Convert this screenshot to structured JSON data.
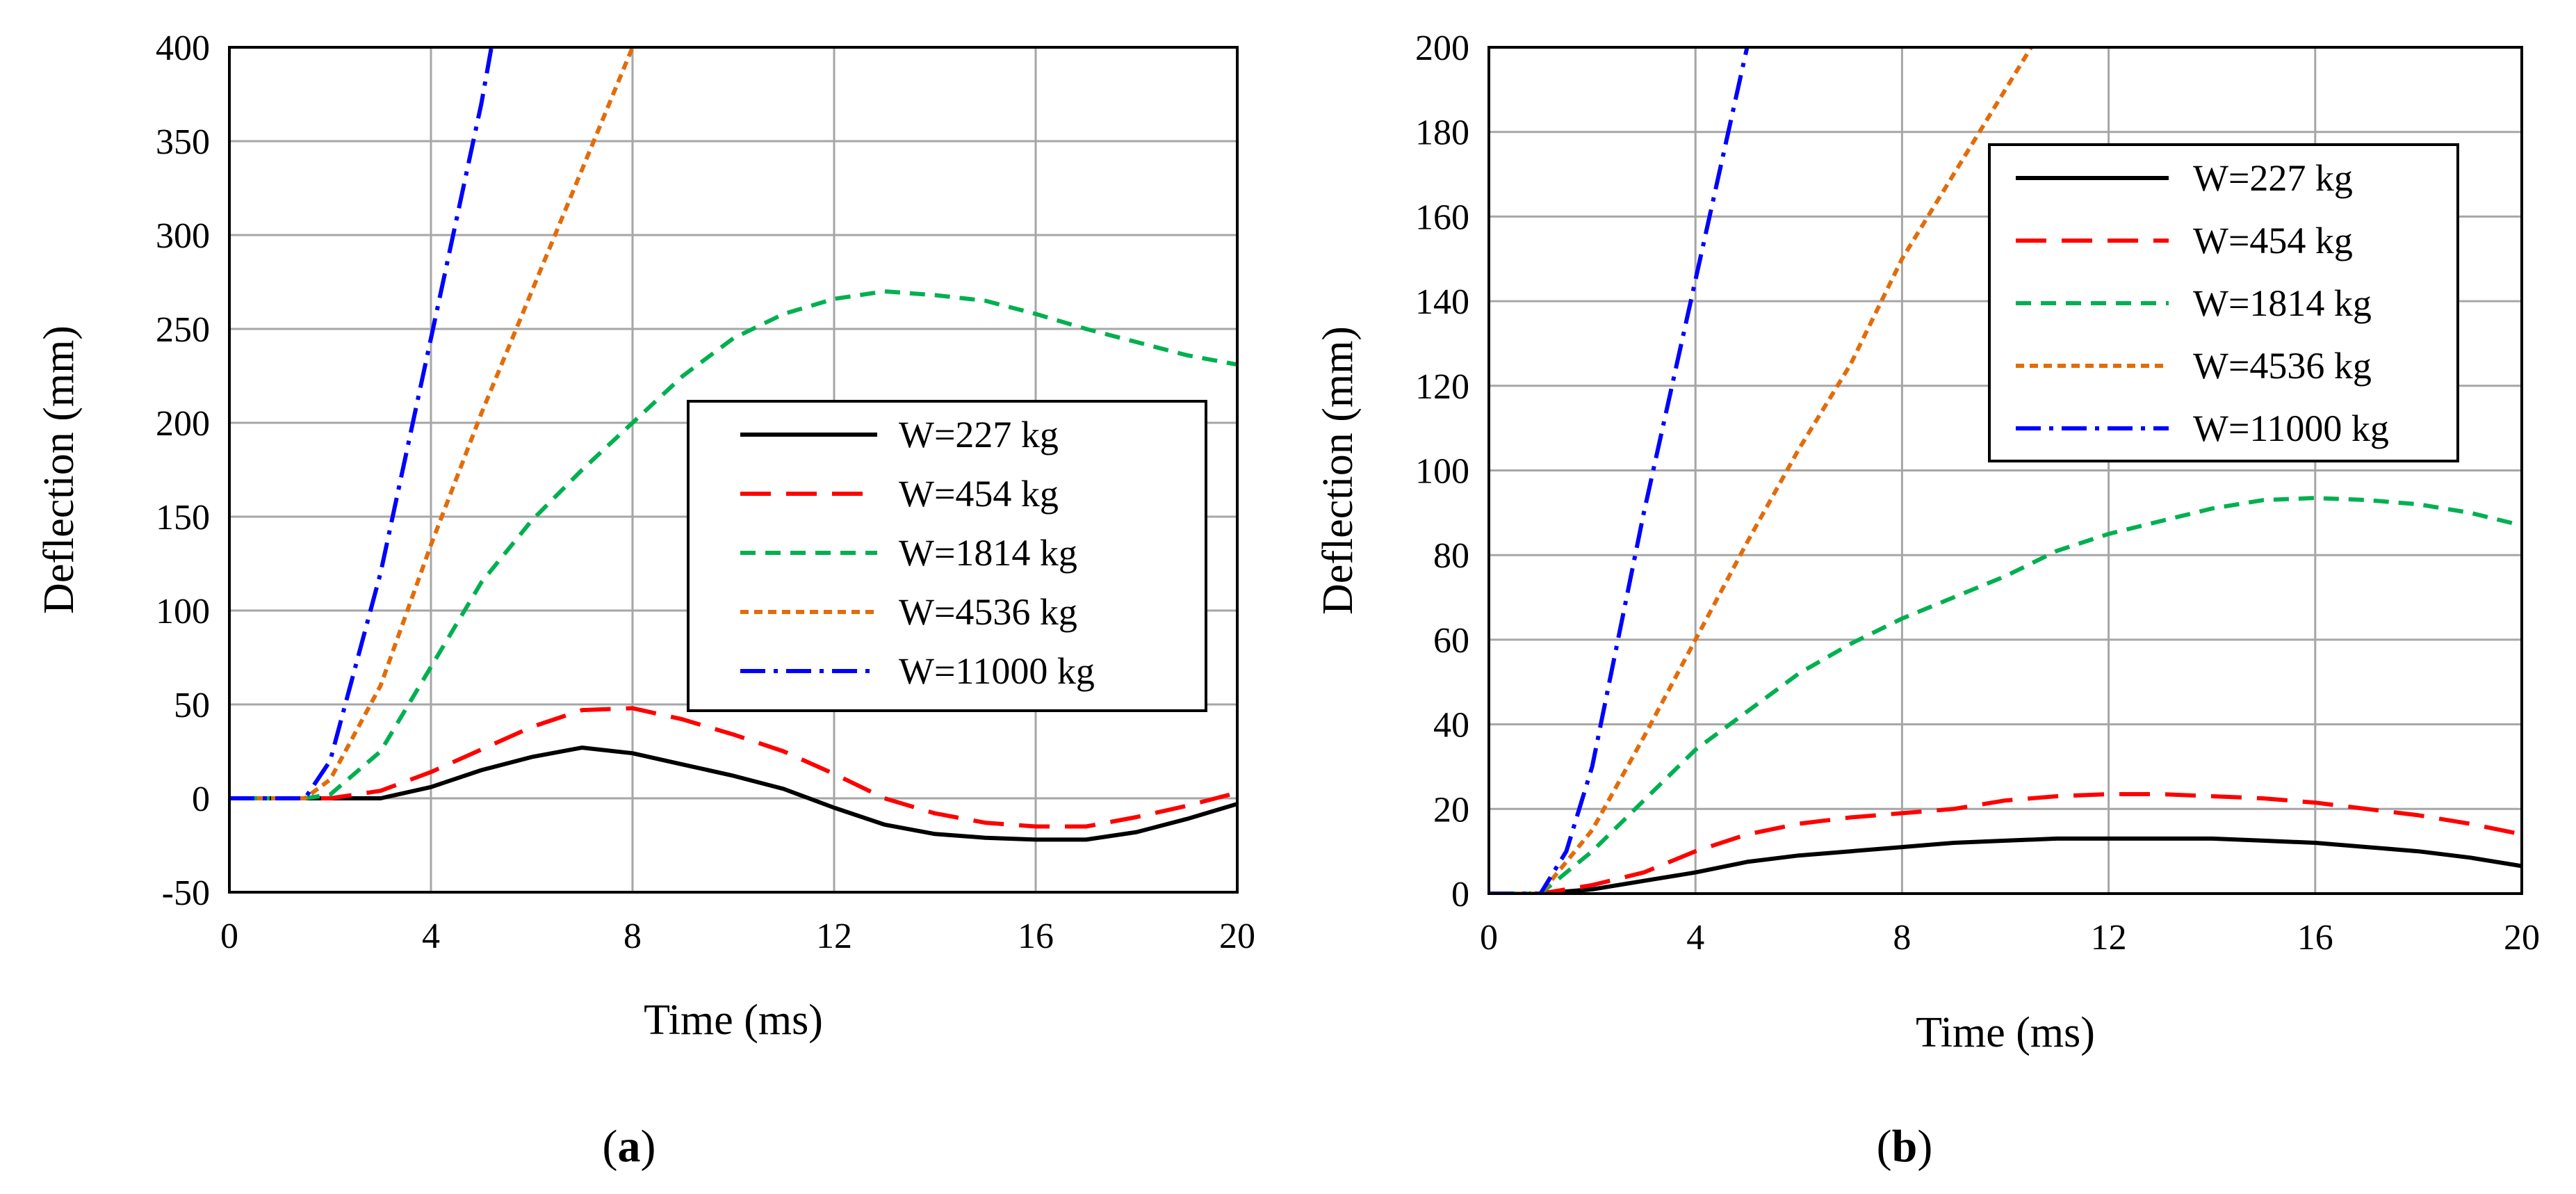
{
  "chart_data": [
    {
      "type": "line",
      "label_open": "(",
      "label_letter": "a",
      "label_close": ")",
      "xlabel": "Time (ms)",
      "ylabel": "Deflection (mm)",
      "xlim": [
        0,
        20
      ],
      "ylim": [
        -50,
        400
      ],
      "xticks": [
        0,
        4,
        8,
        12,
        16,
        20
      ],
      "yticks": [
        -50,
        0,
        50,
        100,
        150,
        200,
        250,
        300,
        350,
        400
      ],
      "xtick_labels": [
        "0",
        "4",
        "8",
        "12",
        "16",
        "20"
      ],
      "ytick_labels": [
        "-50",
        "0",
        "50",
        "100",
        "150",
        "200",
        "250",
        "300",
        "350",
        "400"
      ],
      "grid": true,
      "legend_position": "center-right",
      "series": [
        {
          "name": "W=227 kg",
          "color": "#000000",
          "dash": "solid",
          "points": [
            [
              0,
              0
            ],
            [
              2,
              0
            ],
            [
              3,
              0
            ],
            [
              4,
              6
            ],
            [
              5,
              15
            ],
            [
              6,
              22
            ],
            [
              7,
              27
            ],
            [
              8,
              24
            ],
            [
              9,
              18
            ],
            [
              10,
              12
            ],
            [
              11,
              5
            ],
            [
              12,
              -5
            ],
            [
              13,
              -14
            ],
            [
              14,
              -19
            ],
            [
              15,
              -21
            ],
            [
              16,
              -22
            ],
            [
              17,
              -22
            ],
            [
              18,
              -18
            ],
            [
              19,
              -11
            ],
            [
              20,
              -3
            ]
          ]
        },
        {
          "name": "W=454 kg",
          "color": "#ff0000",
          "dash": "long-dash",
          "points": [
            [
              0,
              0
            ],
            [
              2,
              0
            ],
            [
              3,
              4
            ],
            [
              4,
              14
            ],
            [
              5,
              26
            ],
            [
              6,
              38
            ],
            [
              7,
              47
            ],
            [
              8,
              48
            ],
            [
              9,
              42
            ],
            [
              10,
              34
            ],
            [
              11,
              25
            ],
            [
              12,
              13
            ],
            [
              13,
              0
            ],
            [
              14,
              -8
            ],
            [
              15,
              -13
            ],
            [
              16,
              -15
            ],
            [
              17,
              -15
            ],
            [
              18,
              -10
            ],
            [
              19,
              -4
            ],
            [
              20,
              3
            ]
          ]
        },
        {
          "name": "W=1814 kg",
          "color": "#00b050",
          "dash": "dash",
          "points": [
            [
              0,
              0
            ],
            [
              1.5,
              0
            ],
            [
              2,
              2
            ],
            [
              3,
              25
            ],
            [
              4,
              70
            ],
            [
              5,
              115
            ],
            [
              6,
              148
            ],
            [
              7,
              175
            ],
            [
              8,
              200
            ],
            [
              9,
              225
            ],
            [
              10,
              245
            ],
            [
              11,
              258
            ],
            [
              12,
              266
            ],
            [
              13,
              270
            ],
            [
              14,
              268
            ],
            [
              15,
              265
            ],
            [
              16,
              258
            ],
            [
              17,
              250
            ],
            [
              18,
              243
            ],
            [
              19,
              236
            ],
            [
              20,
              231
            ]
          ]
        },
        {
          "name": "W=4536 kg",
          "color": "#e36c0a",
          "dash": "short-dash",
          "points": [
            [
              0,
              0
            ],
            [
              1.5,
              0
            ],
            [
              2,
              10
            ],
            [
              3,
              60
            ],
            [
              4,
              135
            ],
            [
              5,
              205
            ],
            [
              6,
              270
            ],
            [
              7,
              335
            ],
            [
              8,
              400
            ]
          ]
        },
        {
          "name": "W=11000 kg",
          "color": "#0000ff",
          "dash": "dash-dot",
          "points": [
            [
              0,
              0
            ],
            [
              1.5,
              0
            ],
            [
              2,
              20
            ],
            [
              3,
              120
            ],
            [
              4,
              245
            ],
            [
              5,
              370
            ],
            [
              5.2,
              400
            ]
          ]
        }
      ]
    },
    {
      "type": "line",
      "label_open": "(",
      "label_letter": "b",
      "label_close": ")",
      "xlabel": "Time (ms)",
      "ylabel": "Deflection (mm)",
      "xlim": [
        0,
        20
      ],
      "ylim": [
        0,
        200
      ],
      "xticks": [
        0,
        4,
        8,
        12,
        16,
        20
      ],
      "yticks": [
        0,
        20,
        40,
        60,
        80,
        100,
        120,
        140,
        160,
        180,
        200
      ],
      "xtick_labels": [
        "0",
        "4",
        "8",
        "12",
        "16",
        "20"
      ],
      "ytick_labels": [
        "0",
        "20",
        "40",
        "60",
        "80",
        "100",
        "120",
        "140",
        "160",
        "180",
        "200"
      ],
      "grid": true,
      "legend_position": "top-right",
      "series": [
        {
          "name": "W=227 kg",
          "color": "#000000",
          "dash": "solid",
          "points": [
            [
              0,
              0
            ],
            [
              1,
              0
            ],
            [
              2,
              1
            ],
            [
              3,
              3
            ],
            [
              4,
              5
            ],
            [
              5,
              7.5
            ],
            [
              6,
              9
            ],
            [
              7,
              10
            ],
            [
              8,
              11
            ],
            [
              9,
              12
            ],
            [
              10,
              12.5
            ],
            [
              11,
              13
            ],
            [
              12,
              13
            ],
            [
              13,
              13
            ],
            [
              14,
              13
            ],
            [
              15,
              12.5
            ],
            [
              16,
              12
            ],
            [
              17,
              11
            ],
            [
              18,
              10
            ],
            [
              19,
              8.5
            ],
            [
              20,
              6.5
            ]
          ]
        },
        {
          "name": "W=454 kg",
          "color": "#ff0000",
          "dash": "long-dash",
          "points": [
            [
              0,
              0
            ],
            [
              1,
              0
            ],
            [
              2,
              2
            ],
            [
              3,
              5
            ],
            [
              4,
              10
            ],
            [
              5,
              14
            ],
            [
              6,
              16.5
            ],
            [
              7,
              18
            ],
            [
              8,
              19
            ],
            [
              9,
              20
            ],
            [
              10,
              22
            ],
            [
              11,
              23
            ],
            [
              12,
              23.5
            ],
            [
              13,
              23.5
            ],
            [
              14,
              23
            ],
            [
              15,
              22.5
            ],
            [
              16,
              21.5
            ],
            [
              17,
              20
            ],
            [
              18,
              18.5
            ],
            [
              19,
              16.5
            ],
            [
              20,
              14
            ]
          ]
        },
        {
          "name": "W=1814 kg",
          "color": "#00b050",
          "dash": "dash",
          "points": [
            [
              0,
              0
            ],
            [
              1,
              0
            ],
            [
              2,
              10
            ],
            [
              3,
              22
            ],
            [
              4,
              34
            ],
            [
              5,
              43
            ],
            [
              6,
              52
            ],
            [
              7,
              59
            ],
            [
              8,
              65
            ],
            [
              9,
              70
            ],
            [
              10,
              75
            ],
            [
              11,
              81
            ],
            [
              12,
              85
            ],
            [
              13,
              88
            ],
            [
              14,
              91
            ],
            [
              15,
              93
            ],
            [
              16,
              93.5
            ],
            [
              17,
              93
            ],
            [
              18,
              92
            ],
            [
              19,
              90
            ],
            [
              20,
              87
            ]
          ]
        },
        {
          "name": "W=4536 kg",
          "color": "#e36c0a",
          "dash": "short-dash",
          "points": [
            [
              0,
              0
            ],
            [
              1,
              0
            ],
            [
              2,
              15
            ],
            [
              3,
              37
            ],
            [
              4,
              60
            ],
            [
              5,
              83
            ],
            [
              6,
              105
            ],
            [
              7,
              125
            ],
            [
              8,
              150
            ],
            [
              9,
              170
            ],
            [
              10,
              190
            ],
            [
              10.5,
              200
            ]
          ]
        },
        {
          "name": "W=11000 kg",
          "color": "#0000ff",
          "dash": "dash-dot",
          "points": [
            [
              0,
              0
            ],
            [
              1,
              0
            ],
            [
              1.5,
              10
            ],
            [
              2,
              30
            ],
            [
              3,
              90
            ],
            [
              4,
              145
            ],
            [
              5,
              200
            ]
          ]
        }
      ]
    }
  ]
}
